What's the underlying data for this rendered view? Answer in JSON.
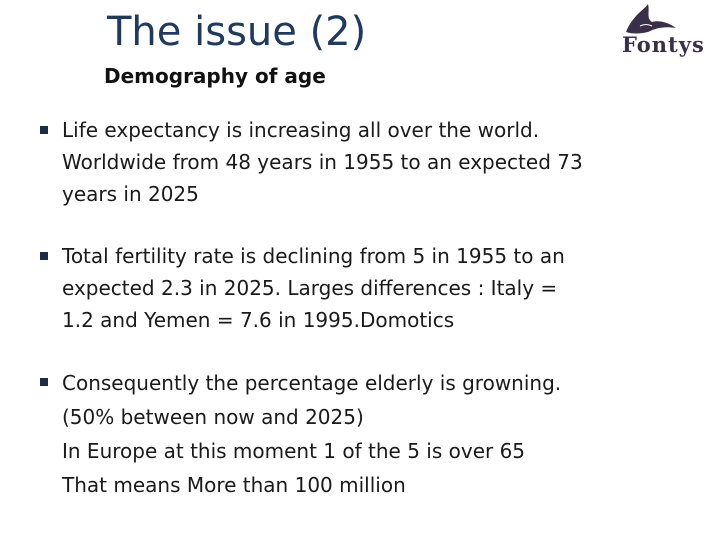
{
  "slide": {
    "title": "The issue (2)",
    "subtitle": "Demography of age",
    "logo": {
      "text": "Fontys",
      "icon": "fontys-bird-logo"
    },
    "bullets": [
      {
        "lines": [
          "Life expectancy is increasing all over the world.",
          "Worldwide from 48 years in 1955 to an expected 73",
          "years in 2025"
        ]
      },
      {
        "lines": [
          "Total fertility rate is declining from 5 in 1955 to an",
          "expected 2.3 in 2025. Larges differences : Italy =",
          "1.2 and Yemen = 7.6 in 1995.Domotics"
        ]
      },
      {
        "lines": [
          "Consequently the percentage elderly is growning.",
          "(50% between now and 2025)",
          "In Europe at this moment 1 of the 5 is over 65",
          "That means More than 100 million"
        ]
      }
    ]
  },
  "colors": {
    "title": "#1f3a5f",
    "bullet_marker": "#1c2b4a",
    "text": "#1a1a1a"
  }
}
